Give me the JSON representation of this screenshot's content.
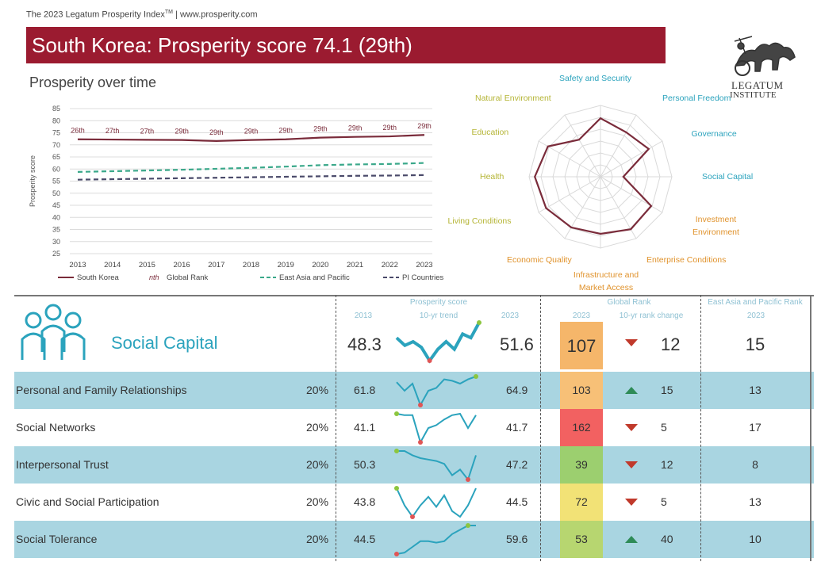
{
  "top_note": {
    "prefix": "The 2023 Legatum Prosperity Index",
    "tm": "TM",
    "suffix": " | www.prosperity.com"
  },
  "banner": {
    "title": "South Korea: Prosperity score 74.1 (29th)",
    "color": "#9b1b30"
  },
  "logo": {
    "line1": "LEGATUM",
    "line2": "INSTITUTE"
  },
  "colors": {
    "south_korea": "#7a2b3a",
    "east_asia": "#3aa88a",
    "pi": "#4a4a6a",
    "teal": "#2ba3bd",
    "shade": "#a9d5e1"
  },
  "chart_data": [
    {
      "type": "line",
      "title": "Prosperity over time",
      "ylabel": "Prosperity score",
      "x": [
        2013,
        2014,
        2015,
        2016,
        2017,
        2018,
        2019,
        2020,
        2021,
        2022,
        2023
      ],
      "ylim": [
        25,
        85
      ],
      "yticks": [
        25,
        30,
        35,
        40,
        45,
        50,
        55,
        60,
        65,
        70,
        75,
        80,
        85
      ],
      "grid": true,
      "series": [
        {
          "name": "South Korea",
          "values": [
            72.3,
            72.2,
            72.1,
            72.0,
            71.6,
            72.0,
            72.3,
            73.0,
            73.3,
            73.5,
            74.1
          ],
          "style": "solid"
        },
        {
          "name": "East Asia and Pacific",
          "values": [
            58.8,
            59.1,
            59.4,
            59.7,
            60.1,
            60.5,
            61.0,
            61.6,
            61.9,
            62.1,
            62.5
          ],
          "style": "dashed"
        },
        {
          "name": "PI Countries",
          "values": [
            55.6,
            55.8,
            56.0,
            56.2,
            56.4,
            56.6,
            56.8,
            57.0,
            57.2,
            57.3,
            57.5
          ],
          "style": "dashed"
        }
      ],
      "rank_labels": [
        "26th",
        "27th",
        "27th",
        "29th",
        "29th",
        "29th",
        "29th",
        "29th",
        "29th",
        "29th",
        "29th"
      ],
      "legend": [
        "South Korea",
        "Global Rank",
        "East Asia and Pacific",
        "PI Countries"
      ],
      "legend_rank_marker": "nth"
    },
    {
      "type": "radar",
      "axes": [
        "Safety and Security",
        "Personal Freedom",
        "Governance",
        "Social Capital",
        "Investment Environment",
        "Enterprise Conditions",
        "Infrastructure and Market Access",
        "Economic Quality",
        "Living Conditions",
        "Health",
        "Education",
        "Natural Environment"
      ],
      "values": [
        0.82,
        0.72,
        0.78,
        0.32,
        0.82,
        0.85,
        0.8,
        0.82,
        0.88,
        0.92,
        0.85,
        0.6
      ]
    }
  ],
  "table": {
    "headers": {
      "score_group": "Prosperity score",
      "trend": "10-yr trend",
      "y2013": "2013",
      "y2023": "2023",
      "rank_group": "Global Rank",
      "rank_year": "2023",
      "rank_change": "10-yr rank change",
      "region_group": "East Asia and Pacific Rank",
      "region_year": "2023"
    },
    "pillar": {
      "name": "Social Capital",
      "icon": "people-group-icon",
      "s2013": "48.3",
      "s2023": "51.6",
      "rank": "107",
      "rank_color": "#f5b66a",
      "direction": "down",
      "change": "12",
      "region_rank": "15",
      "trend": [
        0.6,
        0.4,
        0.5,
        0.35,
        0.0,
        0.3,
        0.5,
        0.3,
        0.7,
        0.6,
        1.0
      ]
    },
    "rows": [
      {
        "name": "Personal and Family Relationships",
        "weight": "20%",
        "s2013": "61.8",
        "s2023": "64.9",
        "rank": "103",
        "rank_color": "#f7c077",
        "direction": "up",
        "change": "15",
        "region_rank": "13",
        "trend": [
          0.8,
          0.5,
          0.75,
          0.0,
          0.5,
          0.6,
          0.9,
          0.85,
          0.75,
          0.9,
          1.0
        ]
      },
      {
        "name": "Social Networks",
        "weight": "20%",
        "s2013": "41.1",
        "s2023": "41.7",
        "rank": "162",
        "rank_color": "#f26161",
        "direction": "down",
        "change": "5",
        "region_rank": "17",
        "trend": [
          1.0,
          0.95,
          0.95,
          0.0,
          0.5,
          0.6,
          0.8,
          0.95,
          1.0,
          0.5,
          0.95
        ]
      },
      {
        "name": "Interpersonal Trust",
        "weight": "20%",
        "s2013": "50.3",
        "s2023": "47.2",
        "rank": "39",
        "rank_color": "#9ccf6f",
        "direction": "down",
        "change": "12",
        "region_rank": "8",
        "trend": [
          1.0,
          1.0,
          0.85,
          0.75,
          0.7,
          0.65,
          0.55,
          0.15,
          0.35,
          0.0,
          0.85
        ]
      },
      {
        "name": "Civic and Social Participation",
        "weight": "20%",
        "s2013": "43.8",
        "s2023": "44.5",
        "rank": "72",
        "rank_color": "#f2e276",
        "direction": "down",
        "change": "5",
        "region_rank": "13",
        "trend": [
          1.0,
          0.4,
          0.0,
          0.4,
          0.7,
          0.35,
          0.75,
          0.2,
          0.0,
          0.4,
          1.0
        ]
      },
      {
        "name": "Social Tolerance",
        "weight": "20%",
        "s2013": "44.5",
        "s2023": "59.6",
        "rank": "53",
        "rank_color": "#b7d670",
        "direction": "up",
        "change": "40",
        "region_rank": "10",
        "trend": [
          0.0,
          0.05,
          0.25,
          0.45,
          0.45,
          0.4,
          0.45,
          0.7,
          0.85,
          1.0,
          1.0
        ]
      }
    ]
  }
}
